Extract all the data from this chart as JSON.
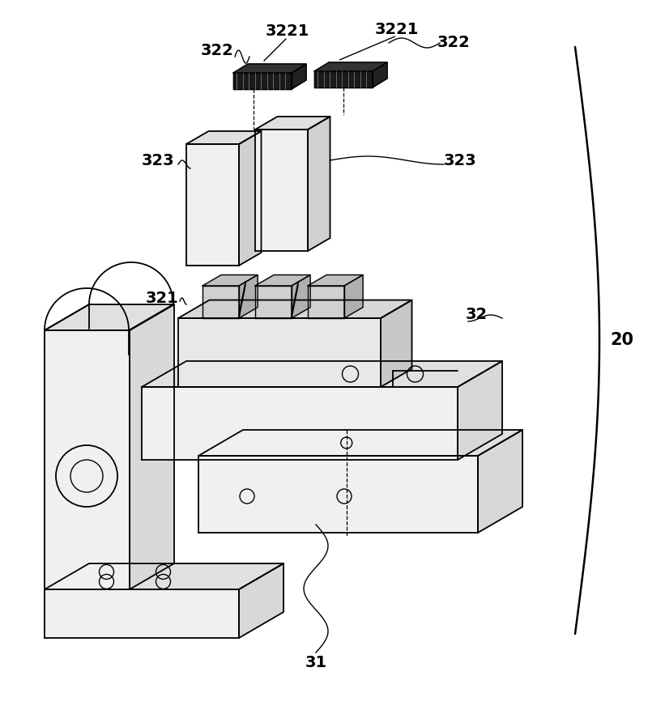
{
  "bg_color": "#ffffff",
  "line_color": "#000000",
  "fig_width": 8.0,
  "fig_height": 8.98,
  "dpi": 100,
  "labels": {
    "322_left": "322",
    "322_right": "322",
    "3221_left": "3221",
    "3221_right": "3221",
    "323_left": "323",
    "323_right": "323",
    "321": "321",
    "32": "32",
    "31": "31",
    "20": "20"
  },
  "gray_light": "#f0f0f0",
  "gray_mid": "#d8d8d8",
  "gray_dark": "#b0b0b0",
  "dark_fill": "#1a1a1a",
  "med_fill": "#888888"
}
